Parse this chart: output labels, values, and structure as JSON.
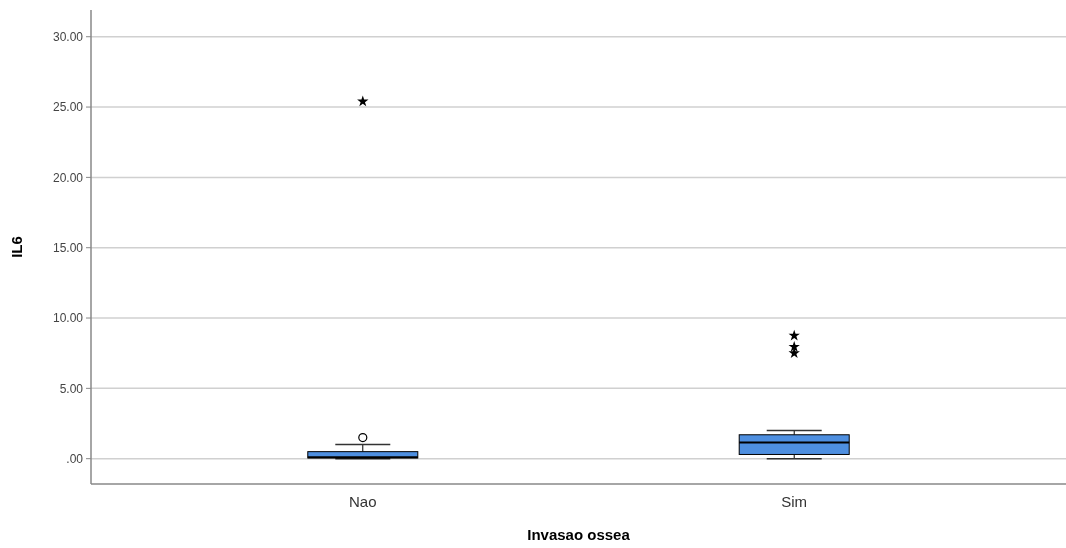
{
  "chart_data": {
    "type": "box",
    "xlabel": "Invasao ossea",
    "ylabel": "IL6",
    "categories": [
      "Nao",
      "Sim"
    ],
    "color": "#4e8fe0",
    "boxes": [
      {
        "low": 0.0,
        "q1": 0.05,
        "median": 0.1,
        "q3": 0.5,
        "high": 1.0,
        "outliers": [
          1.5,
          25.4
        ]
      },
      {
        "low": 0.0,
        "q1": 0.3,
        "median": 1.15,
        "q3": 1.7,
        "high": 2.0,
        "outliers": [
          7.5,
          7.95,
          8.75
        ]
      }
    ],
    "ylim": [
      -1.8,
      31.9
    ],
    "yticks": [
      {
        "value": 0,
        "label": ".00"
      },
      {
        "value": 5,
        "label": "5.00"
      },
      {
        "value": 10,
        "label": "10.00"
      },
      {
        "value": 15,
        "label": "15.00"
      },
      {
        "value": 20,
        "label": "20.00"
      },
      {
        "value": 25,
        "label": "25.00"
      },
      {
        "value": 30,
        "label": "30.00"
      }
    ],
    "grid": "y"
  }
}
